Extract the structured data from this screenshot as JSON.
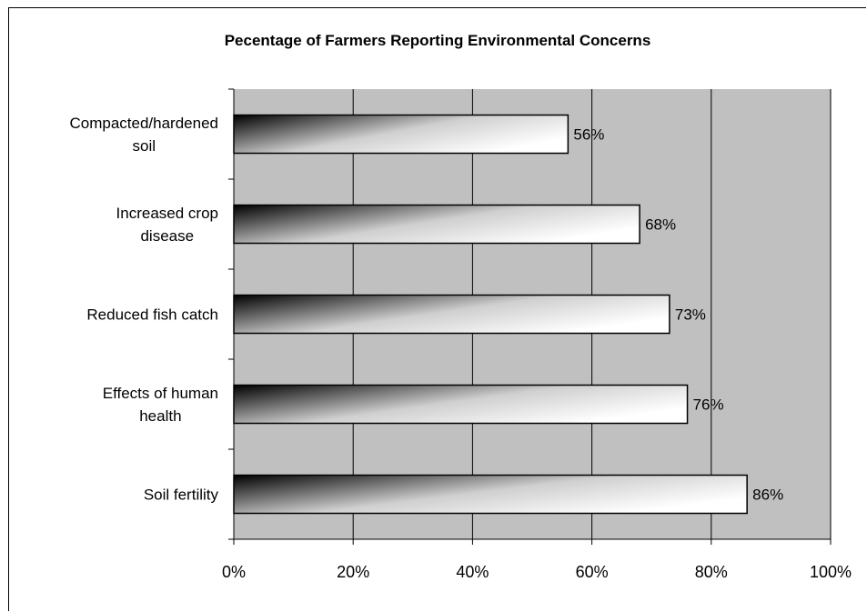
{
  "chart_data": {
    "type": "bar",
    "orientation": "horizontal",
    "title": "Pecentage of Farmers Reporting Environmental Concerns",
    "categories": [
      [
        "Compacted/hardened",
        "soil"
      ],
      [
        "Increased crop",
        "disease"
      ],
      [
        "Reduced fish catch"
      ],
      [
        "Effects of human",
        "health"
      ],
      [
        "Soil fertility"
      ]
    ],
    "values": [
      56,
      68,
      73,
      76,
      86
    ],
    "data_labels": [
      "56%",
      "68%",
      "73%",
      "76%",
      "86%"
    ],
    "xlim": [
      0,
      100
    ],
    "x_ticks": [
      0,
      20,
      40,
      60,
      80,
      100
    ],
    "x_tick_labels": [
      "0%",
      "20%",
      "40%",
      "60%",
      "80%",
      "100%"
    ],
    "grid": true,
    "legend": "none",
    "colors": {
      "plot_background": "#c0c0c0",
      "bar_dark": "#000000",
      "bar_light": "#ffffff",
      "gridline": "#000000"
    }
  }
}
